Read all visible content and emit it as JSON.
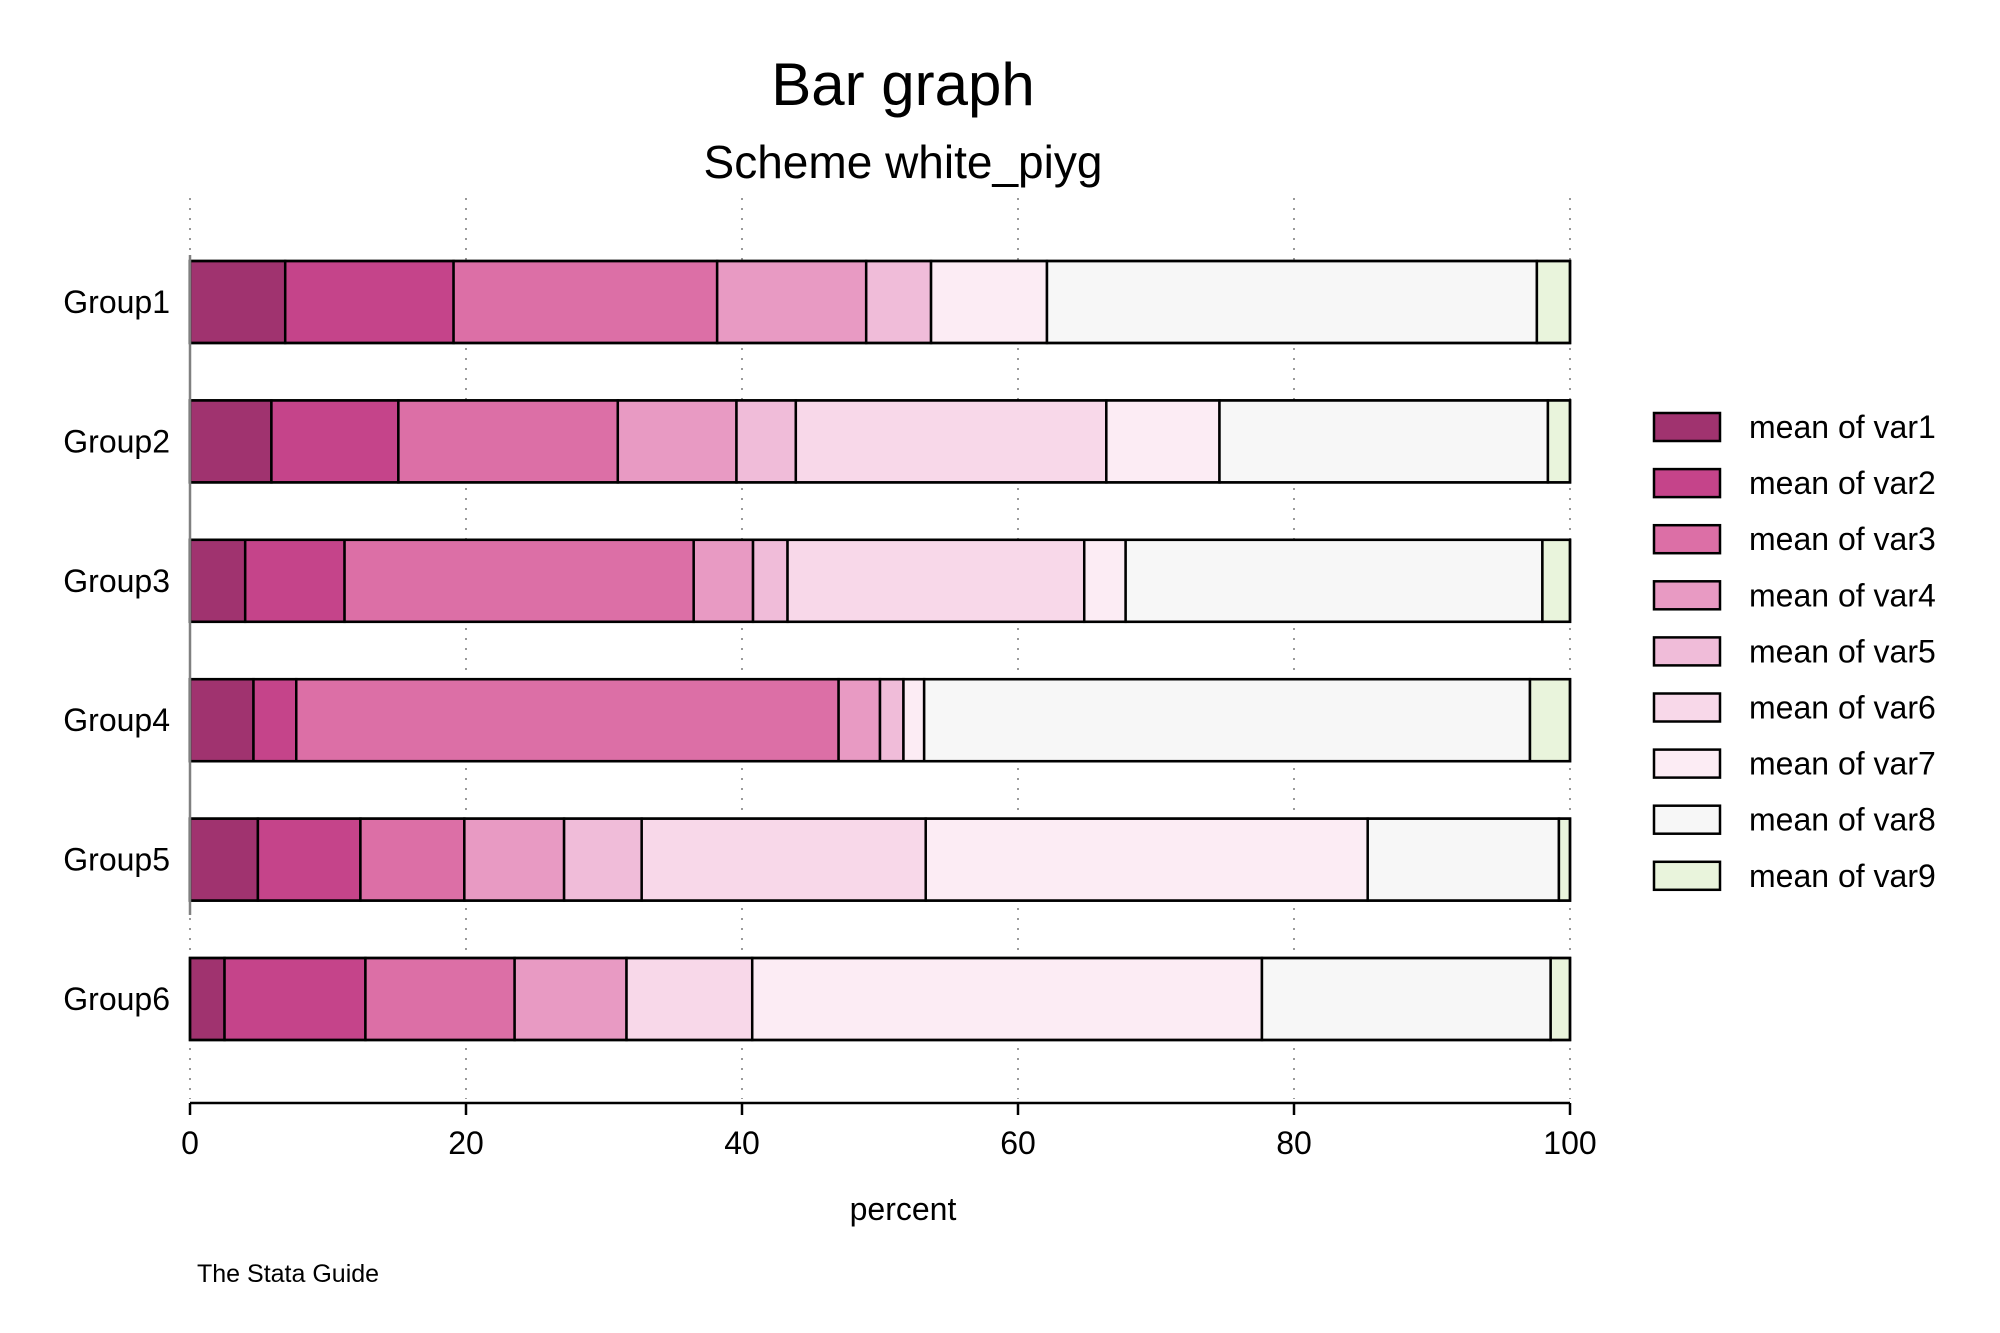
{
  "chart_data": {
    "type": "bar",
    "orientation": "horizontal",
    "stacked": true,
    "title": "Bar graph",
    "subtitle": "Scheme white_piyg",
    "xlabel": "percent",
    "ylabel": "",
    "xlim": [
      0,
      100
    ],
    "xticks": [
      0,
      20,
      40,
      60,
      80,
      100
    ],
    "grid": true,
    "legend_position": "right",
    "note": "The Stata Guide",
    "categories": [
      "Group1",
      "Group2",
      "Group3",
      "Group4",
      "Group5",
      "Group6"
    ],
    "series": [
      {
        "name": "mean of var1",
        "color": "#a0336f",
        "values": [
          6.9,
          5.9,
          4.0,
          4.6,
          4.9,
          2.5
        ]
      },
      {
        "name": "mean of var2",
        "color": "#c5448a",
        "values": [
          12.2,
          9.2,
          7.2,
          3.1,
          7.4,
          10.2
        ]
      },
      {
        "name": "mean of var3",
        "color": "#dc6fa6",
        "values": [
          19.1,
          15.9,
          25.3,
          39.3,
          7.5,
          10.8
        ]
      },
      {
        "name": "mean of var4",
        "color": "#e89ac3",
        "values": [
          10.8,
          8.6,
          4.3,
          3.0,
          7.2,
          8.1
        ]
      },
      {
        "name": "mean of var5",
        "color": "#f0bcd9",
        "values": [
          4.7,
          4.3,
          2.5,
          1.7,
          5.6,
          0.0
        ]
      },
      {
        "name": "mean of var6",
        "color": "#f8d8e9",
        "values": [
          0.0,
          22.5,
          21.5,
          0.0,
          20.5,
          9.1
        ]
      },
      {
        "name": "mean of var7",
        "color": "#fcecf4",
        "values": [
          8.4,
          8.2,
          3.0,
          1.5,
          31.9,
          36.9
        ]
      },
      {
        "name": "mean of var8",
        "color": "#f7f7f7",
        "values": [
          35.5,
          23.8,
          30.2,
          43.9,
          13.8,
          20.9
        ]
      },
      {
        "name": "mean of var9",
        "color": "#e9f4dc",
        "values": [
          2.4,
          1.6,
          2.0,
          2.9,
          0.8,
          1.4
        ]
      }
    ]
  }
}
